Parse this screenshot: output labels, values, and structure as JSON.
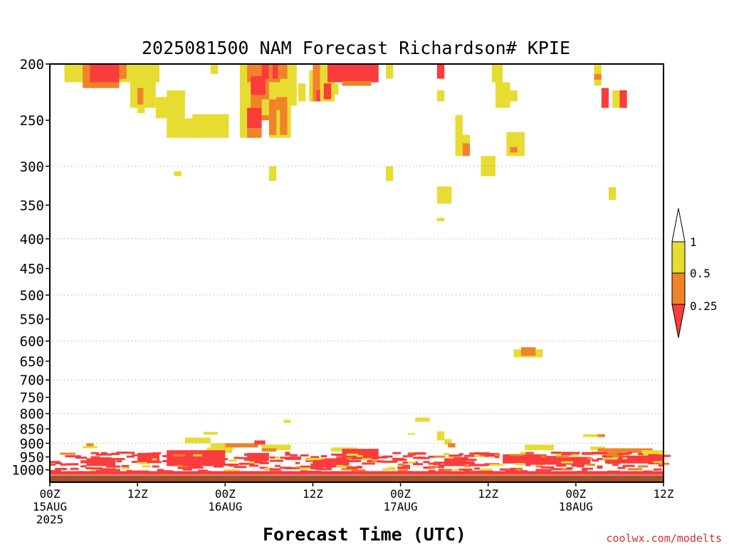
{
  "chart_data": {
    "type": "heatmap",
    "title": "2025081500 NAM Forecast Richardson# KPIE",
    "xlabel": "Forecast Time (UTC)",
    "credit": "coolwx.com/modelts",
    "x_range_hours": [
      0,
      84
    ],
    "y_range_hpa": [
      200,
      1050
    ],
    "y_scale": "log",
    "grid": "dotted horizontal",
    "y_ticks": [
      200,
      250,
      300,
      350,
      400,
      450,
      500,
      550,
      600,
      650,
      700,
      750,
      800,
      850,
      900,
      950,
      1000
    ],
    "y_grid": [
      300,
      400,
      500,
      600,
      700,
      800,
      900
    ],
    "x_ticks": [
      {
        "hour": 0,
        "lines": [
          "00Z",
          "15AUG",
          "2025"
        ]
      },
      {
        "hour": 12,
        "lines": [
          "12Z"
        ]
      },
      {
        "hour": 24,
        "lines": [
          "00Z",
          "16AUG"
        ]
      },
      {
        "hour": 36,
        "lines": [
          "12Z"
        ]
      },
      {
        "hour": 48,
        "lines": [
          "00Z",
          "17AUG"
        ]
      },
      {
        "hour": 60,
        "lines": [
          "12Z"
        ]
      },
      {
        "hour": 72,
        "lines": [
          "00Z",
          "18AUG"
        ]
      },
      {
        "hour": 84,
        "lines": [
          "12Z"
        ]
      }
    ],
    "legend": {
      "placement": "right",
      "labels": [
        "1",
        "0.5",
        "0.25"
      ],
      "bins": [
        {
          "range": "0.5-1",
          "color": "#e6dc32"
        },
        {
          "range": "0.25-0.5",
          "color": "#f08228"
        },
        {
          "range": "<0.25",
          "color": "#fa3c3c"
        }
      ],
      "over_color": "#ffffff"
    },
    "colors": {
      "yellow": "#e6dc32",
      "orange": "#f08228",
      "red": "#fa3c3c",
      "ground": "#a0522d"
    },
    "cells": [
      {
        "c": "y",
        "t": [
          2,
          5
        ],
        "p": [
          200,
          215
        ]
      },
      {
        "c": "y",
        "t": [
          3,
          5
        ],
        "p": [
          200,
          208
        ]
      },
      {
        "c": "o",
        "t": [
          4.5,
          9.5
        ],
        "p": [
          200,
          220
        ]
      },
      {
        "c": "r",
        "t": [
          5.5,
          9.5
        ],
        "p": [
          200,
          215
        ]
      },
      {
        "c": "y",
        "t": [
          9.5,
          15
        ],
        "p": [
          200,
          215
        ]
      },
      {
        "c": "o",
        "t": [
          9.5,
          10.5
        ],
        "p": [
          200,
          212
        ]
      },
      {
        "c": "y",
        "t": [
          11,
          14.5
        ],
        "p": [
          215,
          238
        ]
      },
      {
        "c": "o",
        "t": [
          12,
          12.8
        ],
        "p": [
          220,
          235
        ]
      },
      {
        "c": "y",
        "t": [
          12,
          13
        ],
        "p": [
          235,
          243
        ]
      },
      {
        "c": "y",
        "t": [
          14.5,
          18.5
        ],
        "p": [
          228,
          248
        ]
      },
      {
        "c": "y",
        "t": [
          16,
          18.5
        ],
        "p": [
          222,
          232
        ]
      },
      {
        "c": "y",
        "t": [
          16,
          20
        ],
        "p": [
          248,
          268
        ]
      },
      {
        "c": "y",
        "t": [
          19.5,
          24.5
        ],
        "p": [
          244,
          268
        ]
      },
      {
        "c": "y",
        "t": [
          17,
          18
        ],
        "p": [
          306,
          312
        ]
      },
      {
        "c": "y",
        "t": [
          22,
          23
        ],
        "p": [
          200,
          208
        ]
      },
      {
        "c": "y",
        "t": [
          26,
          30
        ],
        "p": [
          200,
          215
        ]
      },
      {
        "c": "o",
        "t": [
          27,
          30
        ],
        "p": [
          200,
          250
        ]
      },
      {
        "c": "r",
        "t": [
          27.5,
          29.5
        ],
        "p": [
          210,
          226
        ]
      },
      {
        "c": "y",
        "t": [
          26,
          27.5
        ],
        "p": [
          215,
          268
        ]
      },
      {
        "c": "r",
        "t": [
          27,
          29
        ],
        "p": [
          238,
          258
        ]
      },
      {
        "c": "o",
        "t": [
          27,
          29
        ],
        "p": [
          258,
          268
        ]
      },
      {
        "c": "y",
        "t": [
          29,
          30.5
        ],
        "p": [
          230,
          245
        ]
      },
      {
        "c": "r",
        "t": [
          29,
          30
        ],
        "p": [
          200,
          212
        ]
      },
      {
        "c": "y",
        "t": [
          30,
          33
        ],
        "p": [
          200,
          268
        ]
      },
      {
        "c": "o",
        "t": [
          30,
          31.5
        ],
        "p": [
          200,
          215
        ]
      },
      {
        "c": "r",
        "t": [
          30.5,
          31.2
        ],
        "p": [
          200,
          212
        ]
      },
      {
        "c": "o",
        "t": [
          31.5,
          32.5
        ],
        "p": [
          200,
          212
        ]
      },
      {
        "c": "o",
        "t": [
          30,
          31
        ],
        "p": [
          230,
          265
        ]
      },
      {
        "c": "o",
        "t": [
          31,
          32.5
        ],
        "p": [
          228,
          240
        ]
      },
      {
        "c": "o",
        "t": [
          31.5,
          32.5
        ],
        "p": [
          240,
          265
        ]
      },
      {
        "c": "y",
        "t": [
          33,
          33.8
        ],
        "p": [
          200,
          236
        ]
      },
      {
        "c": "y",
        "t": [
          30,
          31
        ],
        "p": [
          300,
          318
        ]
      },
      {
        "c": "y",
        "t": [
          34,
          35
        ],
        "p": [
          216,
          232
        ]
      },
      {
        "c": "y",
        "t": [
          35.5,
          36.5
        ],
        "p": [
          205,
          232
        ]
      },
      {
        "c": "o",
        "t": [
          36,
          37
        ],
        "p": [
          200,
          232
        ]
      },
      {
        "c": "r",
        "t": [
          36.5,
          37.5
        ],
        "p": [
          222,
          232
        ]
      },
      {
        "c": "y",
        "t": [
          37,
          39
        ],
        "p": [
          200,
          232
        ]
      },
      {
        "c": "r",
        "t": [
          37.5,
          38.5
        ],
        "p": [
          216,
          230
        ]
      },
      {
        "c": "y",
        "t": [
          38.5,
          39.5
        ],
        "p": [
          216,
          226
        ]
      },
      {
        "c": "y",
        "t": [
          37,
          38
        ],
        "p": [
          200,
          212
        ]
      },
      {
        "c": "r",
        "t": [
          38,
          45
        ],
        "p": [
          200,
          215
        ]
      },
      {
        "c": "o",
        "t": [
          40,
          44
        ],
        "p": [
          214,
          218
        ]
      },
      {
        "c": "y",
        "t": [
          46,
          47
        ],
        "p": [
          200,
          212
        ]
      },
      {
        "c": "y",
        "t": [
          46,
          47
        ],
        "p": [
          300,
          318
        ]
      },
      {
        "c": "r",
        "t": [
          53,
          54
        ],
        "p": [
          200,
          212
        ]
      },
      {
        "c": "y",
        "t": [
          53,
          54
        ],
        "p": [
          222,
          232
        ]
      },
      {
        "c": "y",
        "t": [
          55.5,
          56.5
        ],
        "p": [
          245,
          288
        ]
      },
      {
        "c": "o",
        "t": [
          56.5,
          57.5
        ],
        "p": [
          265,
          288
        ]
      },
      {
        "c": "y",
        "t": [
          56.5,
          57.5
        ],
        "p": [
          265,
          274
        ]
      },
      {
        "c": "y",
        "t": [
          59,
          61
        ],
        "p": [
          288,
          312
        ]
      },
      {
        "c": "y",
        "t": [
          60.5,
          62
        ],
        "p": [
          200,
          215
        ]
      },
      {
        "c": "y",
        "t": [
          61,
          63
        ],
        "p": [
          215,
          238
        ]
      },
      {
        "c": "y",
        "t": [
          63,
          64
        ],
        "p": [
          222,
          232
        ]
      },
      {
        "c": "y",
        "t": [
          62.5,
          65
        ],
        "p": [
          262,
          288
        ]
      },
      {
        "c": "o",
        "t": [
          63,
          64
        ],
        "p": [
          278,
          284
        ]
      },
      {
        "c": "y",
        "t": [
          53,
          55
        ],
        "p": [
          325,
          348
        ]
      },
      {
        "c": "y",
        "t": [
          53,
          54
        ],
        "p": [
          368,
          373
        ]
      },
      {
        "c": "y",
        "t": [
          74.5,
          75.5
        ],
        "p": [
          200,
          208
        ]
      },
      {
        "c": "o",
        "t": [
          74.5,
          75.5
        ],
        "p": [
          208,
          213
        ]
      },
      {
        "c": "y",
        "t": [
          74.5,
          75.5
        ],
        "p": [
          213,
          218
        ]
      },
      {
        "c": "r",
        "t": [
          75.5,
          76.5
        ],
        "p": [
          220,
          238
        ]
      },
      {
        "c": "y",
        "t": [
          77,
          78
        ],
        "p": [
          222,
          238
        ]
      },
      {
        "c": "r",
        "t": [
          78,
          79
        ],
        "p": [
          222,
          238
        ]
      },
      {
        "c": "y",
        "t": [
          76.5,
          77.5
        ],
        "p": [
          326,
          343
        ]
      },
      {
        "c": "y",
        "t": [
          63.5,
          67.5
        ],
        "p": [
          620,
          640
        ]
      },
      {
        "c": "o",
        "t": [
          64.5,
          66.5
        ],
        "p": [
          615,
          636
        ]
      },
      {
        "c": "y",
        "t": [
          21,
          23
        ],
        "p": [
          860,
          870
        ]
      },
      {
        "c": "y",
        "t": [
          32,
          33
        ],
        "p": [
          820,
          830
        ]
      },
      {
        "c": "y",
        "t": [
          50,
          52
        ],
        "p": [
          813,
          826
        ]
      },
      {
        "c": "y",
        "t": [
          49,
          50
        ],
        "p": [
          865,
          870
        ]
      },
      {
        "c": "y",
        "t": [
          53,
          54
        ],
        "p": [
          858,
          890
        ]
      },
      {
        "c": "y",
        "t": [
          54,
          55
        ],
        "p": [
          885,
          905
        ]
      },
      {
        "c": "o",
        "t": [
          54.5,
          55.5
        ],
        "p": [
          900,
          915
        ]
      },
      {
        "c": "y",
        "t": [
          73,
          75.5
        ],
        "p": [
          868,
          878
        ]
      },
      {
        "c": "o",
        "t": [
          75,
          76
        ],
        "p": [
          868,
          878
        ]
      },
      {
        "c": "y",
        "t": [
          18.5,
          22
        ],
        "p": [
          880,
          900
        ]
      },
      {
        "c": "y",
        "t": [
          22,
          25
        ],
        "p": [
          900,
          920
        ]
      },
      {
        "c": "o",
        "t": [
          24,
          28.5
        ],
        "p": [
          900,
          915
        ]
      },
      {
        "c": "r",
        "t": [
          28,
          29.5
        ],
        "p": [
          890,
          905
        ]
      },
      {
        "c": "y",
        "t": [
          29,
          33
        ],
        "p": [
          905,
          925
        ]
      },
      {
        "c": "o",
        "t": [
          29,
          31
        ],
        "p": [
          918,
          930
        ]
      },
      {
        "c": "y",
        "t": [
          21.5,
          25
        ],
        "p": [
          915,
          935
        ]
      },
      {
        "c": "o",
        "t": [
          5,
          6
        ],
        "p": [
          900,
          912
        ]
      },
      {
        "c": "y",
        "t": [
          4.5,
          6.5
        ],
        "p": [
          910,
          918
        ]
      },
      {
        "c": "y",
        "t": [
          38.5,
          42
        ],
        "p": [
          915,
          930
        ]
      },
      {
        "c": "y",
        "t": [
          65,
          69
        ],
        "p": [
          905,
          925
        ]
      },
      {
        "c": "y",
        "t": [
          74,
          76
        ],
        "p": [
          912,
          925
        ]
      },
      {
        "c": "o",
        "t": [
          75,
          82.5
        ],
        "p": [
          918,
          935
        ]
      },
      {
        "c": "y",
        "t": [
          81,
          84
        ],
        "p": [
          925,
          945
        ]
      },
      {
        "c": "r",
        "t": [
          16,
          24
        ],
        "p": [
          925,
          985
        ]
      },
      {
        "c": "r",
        "t": [
          27,
          30
        ],
        "p": [
          935,
          965
        ]
      },
      {
        "c": "r",
        "t": [
          40,
          45
        ],
        "p": [
          920,
          960
        ]
      },
      {
        "c": "r",
        "t": [
          12,
          15
        ],
        "p": [
          935,
          970
        ]
      },
      {
        "c": "r",
        "t": [
          62,
          68
        ],
        "p": [
          940,
          975
        ]
      },
      {
        "c": "r",
        "t": [
          68,
          74
        ],
        "p": [
          950,
          980
        ]
      },
      {
        "c": "r",
        "t": [
          76,
          84
        ],
        "p": [
          945,
          975
        ]
      },
      {
        "c": "r",
        "t": [
          54,
          57
        ],
        "p": [
          955,
          985
        ]
      },
      {
        "c": "o",
        "t": [
          44,
          46
        ],
        "p": [
          948,
          955
        ]
      },
      {
        "c": "r",
        "t": [
          36,
          41
        ],
        "p": [
          955,
          990
        ]
      },
      {
        "c": "r",
        "t": [
          5,
          9
        ],
        "p": [
          955,
          985
        ]
      }
    ]
  }
}
